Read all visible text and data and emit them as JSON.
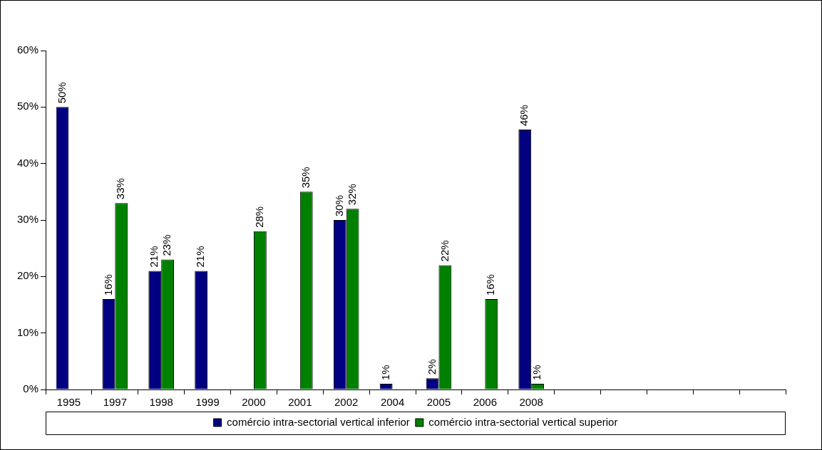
{
  "chart_data": {
    "type": "bar",
    "categories": [
      "1995",
      "1997",
      "1998",
      "1999",
      "2000",
      "2001",
      "2002",
      "2004",
      "2005",
      "2006",
      "2008",
      null,
      null,
      null,
      null,
      null
    ],
    "series": [
      {
        "name": "comércio intra-sectorial vertical inferior",
        "color": "#000080",
        "values": [
          50,
          16,
          21,
          21,
          null,
          null,
          30,
          1,
          2,
          null,
          46,
          null,
          null,
          null,
          null,
          null
        ],
        "value_labels": [
          "50%",
          "16%",
          "21%",
          "21%",
          null,
          null,
          "30%",
          "1%",
          "2%",
          null,
          "46%",
          null,
          null,
          null,
          null,
          null
        ]
      },
      {
        "name": "comércio intra-sectorial vertical superior",
        "color": "#008000",
        "values": [
          null,
          33,
          23,
          null,
          28,
          35,
          32,
          null,
          22,
          16,
          1,
          null,
          null,
          null,
          null,
          null
        ],
        "value_labels": [
          null,
          "33%",
          "23%",
          null,
          "28%",
          "35%",
          "32%",
          null,
          "22%",
          "16%",
          "1%",
          null,
          null,
          null,
          null,
          null
        ]
      }
    ],
    "ylim": [
      0,
      60
    ],
    "yticks": [
      {
        "value": 0,
        "label": "0%"
      },
      {
        "value": 10,
        "label": "10%"
      },
      {
        "value": 20,
        "label": "20%"
      },
      {
        "value": 30,
        "label": "30%"
      },
      {
        "value": 40,
        "label": "40%"
      },
      {
        "value": 50,
        "label": "50%"
      },
      {
        "value": 60,
        "label": "60%"
      }
    ],
    "grid": false,
    "legend": "bottom"
  }
}
